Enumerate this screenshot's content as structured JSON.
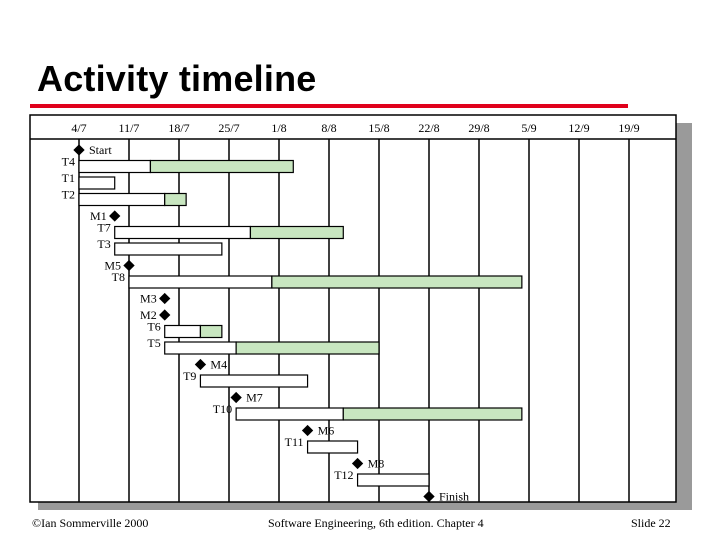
{
  "slide": {
    "title": "Activity timeline",
    "footer_left": "©Ian Sommerville 2000",
    "footer_center": "Software Engineering, 6th edition. Chapter 4",
    "footer_right": "Slide  22"
  },
  "colors": {
    "title_rule": "#e0001b",
    "bar_fill": "#c8e6c0",
    "bar_white": "#ffffff",
    "grid": "#000000",
    "shadow": "#9a9a9a"
  },
  "chart_data": {
    "type": "gantt",
    "date_ticks": [
      "4/7",
      "11/7",
      "18/7",
      "25/7",
      "1/8",
      "8/8",
      "15/8",
      "22/8",
      "29/8",
      "5/9",
      "12/9",
      "19/9"
    ],
    "rows": [
      {
        "label": "Start",
        "kind": "milestone",
        "day": 0
      },
      {
        "label": "T4",
        "kind": "task",
        "start": 0,
        "duration": 10,
        "slack": 20
      },
      {
        "label": "T1",
        "kind": "task",
        "start": 0,
        "duration": 5
      },
      {
        "label": "T2",
        "kind": "task",
        "start": 0,
        "duration": 12,
        "slack": 3
      },
      {
        "label": "M1",
        "kind": "milestone",
        "day": 5
      },
      {
        "label": "T7",
        "kind": "task",
        "start": 5,
        "duration": 19,
        "slack": 13
      },
      {
        "label": "T3",
        "kind": "task",
        "start": 5,
        "duration": 15
      },
      {
        "label": "M5",
        "kind": "milestone",
        "day": 7
      },
      {
        "label": "T8",
        "kind": "task",
        "start": 7,
        "duration": 20,
        "slack": 35
      },
      {
        "label": "M3",
        "kind": "milestone",
        "day": 12
      },
      {
        "label": "M2",
        "kind": "milestone",
        "day": 12
      },
      {
        "label": "T6",
        "kind": "task",
        "start": 12,
        "duration": 5,
        "slack": 3
      },
      {
        "label": "T5",
        "kind": "task",
        "start": 12,
        "duration": 10,
        "slack": 20
      },
      {
        "label": "M4",
        "kind": "milestone",
        "day": 17
      },
      {
        "label": "T9",
        "kind": "task",
        "start": 17,
        "duration": 15
      },
      {
        "label": "M7",
        "kind": "milestone",
        "day": 22
      },
      {
        "label": "T10",
        "kind": "task",
        "start": 22,
        "duration": 15,
        "slack": 25
      },
      {
        "label": "M6",
        "kind": "milestone",
        "day": 32
      },
      {
        "label": "T11",
        "kind": "task",
        "start": 32,
        "duration": 7
      },
      {
        "label": "M8",
        "kind": "milestone",
        "day": 39
      },
      {
        "label": "T12",
        "kind": "task",
        "start": 39,
        "duration": 10
      },
      {
        "label": "Finish",
        "kind": "milestone",
        "day": 49
      }
    ]
  }
}
